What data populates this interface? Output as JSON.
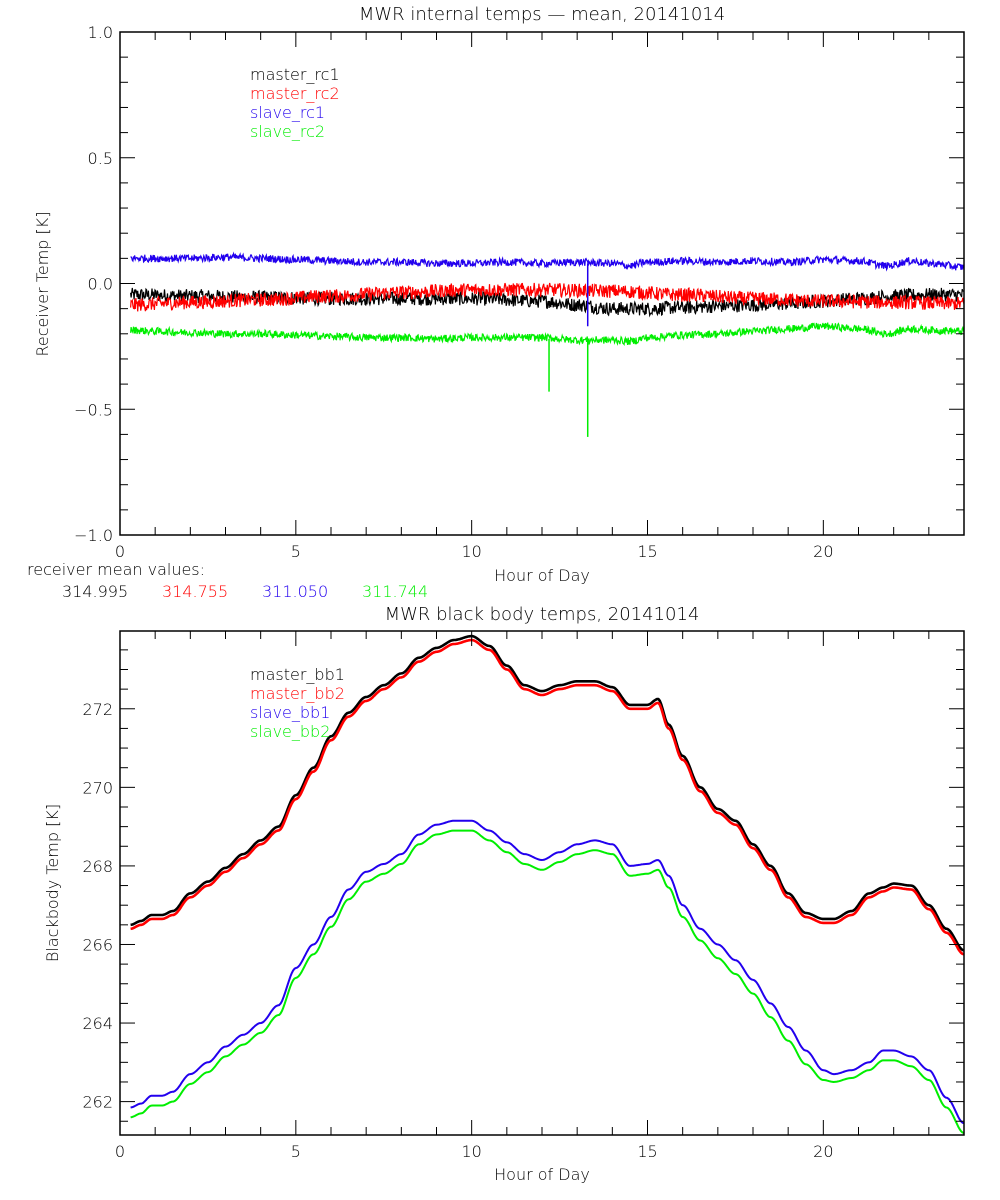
{
  "chart_data": [
    {
      "type": "line",
      "title": "MWR internal temps — mean, 20141014",
      "xlabel": "Hour of Day",
      "ylabel": "Receiver Temp [K]",
      "xlim": [
        0,
        24
      ],
      "ylim": [
        -1.0,
        1.0
      ],
      "x_ticks": [
        0,
        5,
        10,
        15,
        20
      ],
      "x_tick_labels": [
        "0",
        "5",
        "10",
        "15",
        "20"
      ],
      "x_minor_step": 1,
      "y_ticks": [
        -1.0,
        -0.5,
        0.0,
        0.5,
        1.0
      ],
      "y_tick_labels": [
        "−1.0",
        "−0.5",
        "0.0",
        "0.5",
        "1.0"
      ],
      "y_minor_step": 0.1,
      "grid": false,
      "legend_position": "top-left",
      "noise_band": 0.025,
      "series": [
        {
          "name": "master_rc1",
          "color": "#000000",
          "x": [
            0.3,
            2,
            4,
            6,
            8,
            10,
            12,
            13,
            14,
            15,
            16,
            17,
            18,
            19,
            20,
            21,
            22,
            23,
            24
          ],
          "y": [
            -0.045,
            -0.05,
            -0.055,
            -0.06,
            -0.06,
            -0.06,
            -0.07,
            -0.085,
            -0.1,
            -0.1,
            -0.095,
            -0.09,
            -0.085,
            -0.08,
            -0.07,
            -0.06,
            -0.05,
            -0.045,
            -0.045
          ]
        },
        {
          "name": "master_rc2",
          "color": "#ff0000",
          "x": [
            0.3,
            2,
            4,
            6,
            8,
            10,
            12,
            14,
            16,
            18,
            20,
            22,
            24
          ],
          "y": [
            -0.085,
            -0.075,
            -0.065,
            -0.05,
            -0.035,
            -0.025,
            -0.025,
            -0.03,
            -0.045,
            -0.06,
            -0.07,
            -0.075,
            -0.08
          ]
        },
        {
          "name": "slave_rc1",
          "color": "#2200ee",
          "x": [
            0.3,
            1,
            2,
            3,
            4,
            5,
            6,
            7,
            8,
            9,
            10,
            11,
            12,
            13,
            14,
            14.5,
            15,
            16,
            17,
            18,
            19,
            20,
            21,
            21.8,
            22.5,
            23,
            24
          ],
          "y": [
            0.1,
            0.1,
            0.1,
            0.105,
            0.1,
            0.095,
            0.09,
            0.085,
            0.085,
            0.08,
            0.08,
            0.085,
            0.08,
            0.085,
            0.08,
            0.07,
            0.085,
            0.09,
            0.085,
            0.09,
            0.085,
            0.095,
            0.09,
            0.07,
            0.09,
            0.08,
            0.065
          ]
        },
        {
          "name": "slave_rc2",
          "color": "#00ee00",
          "x": [
            0.3,
            1,
            2,
            3,
            4,
            5,
            6,
            7,
            8,
            9,
            10,
            11,
            12,
            13,
            14,
            14.5,
            15,
            16,
            17,
            18,
            19,
            20,
            21,
            21.8,
            22.5,
            23,
            24
          ],
          "y": [
            -0.185,
            -0.19,
            -0.195,
            -0.2,
            -0.2,
            -0.205,
            -0.21,
            -0.215,
            -0.215,
            -0.22,
            -0.215,
            -0.215,
            -0.215,
            -0.225,
            -0.225,
            -0.23,
            -0.215,
            -0.205,
            -0.2,
            -0.19,
            -0.18,
            -0.17,
            -0.18,
            -0.2,
            -0.18,
            -0.185,
            -0.19
          ]
        }
      ],
      "spikes": [
        {
          "series": "slave_rc1",
          "x": 13.3,
          "y_from": 0.08,
          "y_to": -0.17
        },
        {
          "series": "slave_rc2",
          "x": 12.2,
          "y_from": -0.22,
          "y_to": -0.43
        },
        {
          "series": "slave_rc2",
          "x": 13.3,
          "y_from": -0.22,
          "y_to": -0.61
        }
      ],
      "annotation": {
        "label": "receiver mean values:",
        "values": [
          {
            "text": "314.995",
            "color": "#000000"
          },
          {
            "text": "314.755",
            "color": "#ff0000"
          },
          {
            "text": "311.050",
            "color": "#2200ee"
          },
          {
            "text": "311.744",
            "color": "#00ee00"
          }
        ]
      }
    },
    {
      "type": "line",
      "title": "MWR black body temps, 20141014",
      "xlabel": "Hour of Day",
      "ylabel": "Blackbody Temp [K]",
      "xlim": [
        0,
        24
      ],
      "ylim": [
        261.15,
        273.98
      ],
      "x_ticks": [
        0,
        5,
        10,
        15,
        20
      ],
      "x_tick_labels": [
        "0",
        "5",
        "10",
        "15",
        "20"
      ],
      "x_minor_step": 1,
      "y_ticks": [
        262,
        264,
        266,
        268,
        270,
        272
      ],
      "y_tick_labels": [
        "262",
        "264",
        "266",
        "268",
        "270",
        "272"
      ],
      "y_minor_step": 0.5,
      "grid": false,
      "legend_position": "top-left",
      "series": [
        {
          "name": "master_bb1",
          "color": "#000000",
          "x": [
            0.3,
            0.6,
            0.9,
            1.2,
            1.5,
            2.0,
            2.5,
            3.0,
            3.5,
            4.0,
            4.5,
            5.0,
            5.5,
            6.0,
            6.5,
            7.0,
            7.5,
            8.0,
            8.5,
            9.0,
            9.5,
            10.0,
            10.5,
            11.0,
            11.5,
            12.0,
            12.5,
            13.0,
            13.5,
            14.0,
            14.5,
            15.0,
            15.3,
            15.6,
            16.0,
            16.5,
            17.0,
            17.5,
            18.0,
            18.5,
            19.0,
            19.5,
            20.0,
            20.3,
            20.8,
            21.3,
            21.7,
            22.0,
            22.5,
            23.0,
            23.5,
            24.0
          ],
          "y": [
            266.5,
            266.6,
            266.75,
            266.75,
            266.85,
            267.3,
            267.6,
            267.95,
            268.3,
            268.65,
            269.0,
            269.8,
            270.5,
            271.3,
            271.9,
            272.3,
            272.6,
            272.9,
            273.3,
            273.55,
            273.75,
            273.85,
            273.6,
            273.1,
            272.6,
            272.45,
            272.6,
            272.7,
            272.7,
            272.55,
            272.1,
            272.1,
            272.25,
            271.6,
            270.8,
            270.0,
            269.45,
            269.15,
            268.55,
            268.0,
            267.3,
            266.8,
            266.65,
            266.65,
            266.85,
            267.3,
            267.45,
            267.55,
            267.5,
            267.0,
            266.4,
            265.85
          ]
        },
        {
          "name": "master_bb2",
          "color": "#ff0000",
          "x": [
            0.3,
            0.6,
            0.9,
            1.2,
            1.5,
            2.0,
            2.5,
            3.0,
            3.5,
            4.0,
            4.5,
            5.0,
            5.5,
            6.0,
            6.5,
            7.0,
            7.5,
            8.0,
            8.5,
            9.0,
            9.5,
            10.0,
            10.5,
            11.0,
            11.5,
            12.0,
            12.5,
            13.0,
            13.5,
            14.0,
            14.5,
            15.0,
            15.3,
            15.6,
            16.0,
            16.5,
            17.0,
            17.5,
            18.0,
            18.5,
            19.0,
            19.5,
            20.0,
            20.3,
            20.8,
            21.3,
            21.7,
            22.0,
            22.5,
            23.0,
            23.5,
            24.0
          ],
          "y": [
            266.4,
            266.5,
            266.65,
            266.65,
            266.75,
            267.2,
            267.5,
            267.85,
            268.2,
            268.55,
            268.9,
            269.7,
            270.4,
            271.2,
            271.8,
            272.2,
            272.5,
            272.8,
            273.2,
            273.45,
            273.65,
            273.75,
            273.5,
            273.0,
            272.5,
            272.35,
            272.5,
            272.6,
            272.6,
            272.45,
            272.0,
            272.0,
            272.15,
            271.5,
            270.7,
            269.9,
            269.35,
            269.05,
            268.45,
            267.9,
            267.2,
            266.7,
            266.55,
            266.55,
            266.75,
            267.2,
            267.35,
            267.45,
            267.4,
            266.9,
            266.3,
            265.75
          ]
        },
        {
          "name": "slave_bb1",
          "color": "#2200ee",
          "x": [
            0.3,
            0.6,
            0.9,
            1.2,
            1.5,
            2.0,
            2.5,
            3.0,
            3.5,
            4.0,
            4.5,
            5.0,
            5.5,
            6.0,
            6.5,
            7.0,
            7.5,
            8.0,
            8.5,
            9.0,
            9.5,
            10.0,
            10.5,
            11.0,
            11.5,
            12.0,
            12.5,
            13.0,
            13.5,
            14.0,
            14.5,
            15.0,
            15.3,
            15.6,
            16.0,
            16.5,
            17.0,
            17.5,
            18.0,
            18.5,
            19.0,
            19.5,
            20.0,
            20.3,
            20.8,
            21.3,
            21.7,
            22.0,
            22.5,
            23.0,
            23.5,
            24.0
          ],
          "y": [
            261.85,
            261.95,
            262.15,
            262.15,
            262.25,
            262.7,
            263.0,
            263.4,
            263.7,
            264.0,
            264.45,
            265.4,
            266.0,
            266.7,
            267.4,
            267.85,
            268.05,
            268.3,
            268.8,
            269.05,
            269.15,
            269.15,
            268.9,
            268.6,
            268.3,
            268.15,
            268.35,
            268.55,
            268.65,
            268.55,
            268.0,
            268.05,
            268.15,
            267.75,
            267.0,
            266.4,
            266.0,
            265.6,
            265.1,
            264.5,
            263.9,
            263.3,
            262.8,
            262.7,
            262.8,
            263.0,
            263.3,
            263.3,
            263.15,
            262.8,
            262.1,
            261.45
          ]
        },
        {
          "name": "slave_bb2",
          "color": "#00ee00",
          "x": [
            0.3,
            0.6,
            0.9,
            1.2,
            1.5,
            2.0,
            2.5,
            3.0,
            3.5,
            4.0,
            4.5,
            5.0,
            5.5,
            6.0,
            6.5,
            7.0,
            7.5,
            8.0,
            8.5,
            9.0,
            9.5,
            10.0,
            10.5,
            11.0,
            11.5,
            12.0,
            12.5,
            13.0,
            13.5,
            14.0,
            14.5,
            15.0,
            15.3,
            15.6,
            16.0,
            16.5,
            17.0,
            17.5,
            18.0,
            18.5,
            19.0,
            19.5,
            20.0,
            20.3,
            20.8,
            21.3,
            21.7,
            22.0,
            22.5,
            23.0,
            23.5,
            24.0
          ],
          "y": [
            261.6,
            261.7,
            261.9,
            261.9,
            262.0,
            262.45,
            262.75,
            263.15,
            263.45,
            263.75,
            264.2,
            265.15,
            265.75,
            266.45,
            267.15,
            267.6,
            267.8,
            268.05,
            268.55,
            268.8,
            268.9,
            268.9,
            268.65,
            268.35,
            268.05,
            267.9,
            268.1,
            268.3,
            268.4,
            268.3,
            267.75,
            267.8,
            267.9,
            267.45,
            266.7,
            266.1,
            265.65,
            265.25,
            264.75,
            264.15,
            263.55,
            262.95,
            262.55,
            262.5,
            262.6,
            262.8,
            263.05,
            263.05,
            262.9,
            262.55,
            261.85,
            261.2
          ]
        }
      ]
    }
  ]
}
